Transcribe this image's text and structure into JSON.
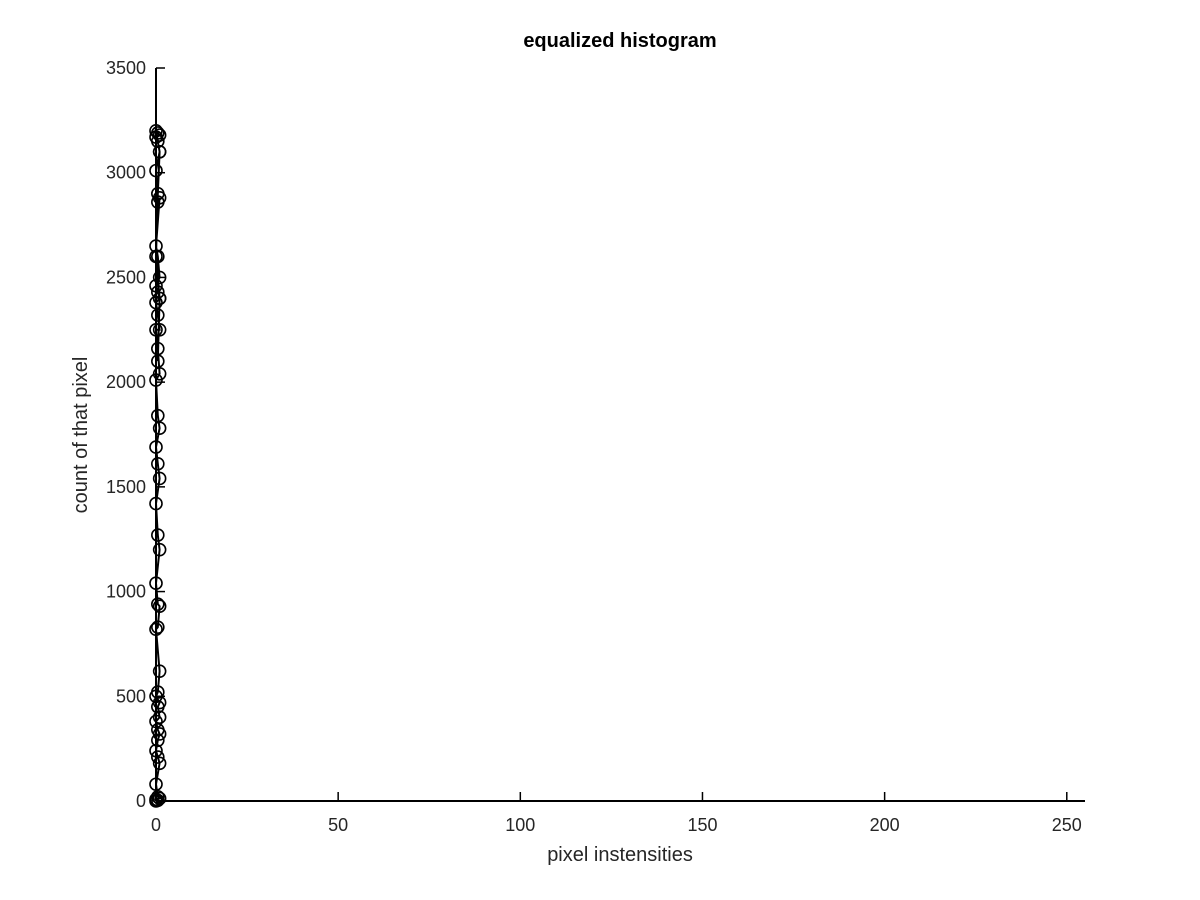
{
  "chart_data": {
    "type": "scatter",
    "title": "equalized histogram",
    "xlabel": "pixel instensities",
    "ylabel": "count of that pixel",
    "xlim": [
      0,
      255
    ],
    "ylim": [
      0,
      3500
    ],
    "xticks": [
      0,
      50,
      100,
      150,
      200,
      250
    ],
    "yticks": [
      0,
      500,
      1000,
      1500,
      2000,
      2500,
      3000,
      3500
    ],
    "xtick_labels": [
      "0",
      "50",
      "100",
      "150",
      "200",
      "250"
    ],
    "ytick_labels": [
      "0",
      "500",
      "1000",
      "1500",
      "2000",
      "2500",
      "3000",
      "3500"
    ],
    "grid": false,
    "marker": "o",
    "line": true,
    "color": "#000000",
    "series": [
      {
        "x": [
          0.0,
          0.5,
          0.0,
          1.0,
          0.5,
          0.0,
          1.0,
          0.5,
          0.0,
          0.5,
          1.0,
          0.5,
          0.0,
          1.0,
          0.5,
          1.0,
          0.0,
          0.5,
          1.0,
          0.0,
          0.5,
          1.0,
          0.5,
          0.0,
          1.0,
          0.5,
          0.0,
          1.0,
          0.5,
          0.0,
          1.0,
          0.5,
          0.0,
          1.0,
          0.5,
          0.0,
          1.0,
          0.5,
          0.0,
          1.0,
          0.5,
          0.0,
          1.0,
          0.5,
          0.0,
          1.0,
          0.5,
          0.0,
          1.0,
          0.5,
          0.0,
          1.0,
          0.5,
          0.0,
          1.0,
          0.5,
          0.0,
          1.0,
          0.5
        ],
        "y": [
          0,
          3,
          8,
          12,
          20,
          80,
          180,
          210,
          240,
          290,
          320,
          340,
          380,
          400,
          450,
          470,
          500,
          520,
          620,
          820,
          830,
          930,
          940,
          1040,
          1200,
          1270,
          1420,
          1540,
          1610,
          1690,
          1780,
          1840,
          2010,
          2040,
          2160,
          2250,
          2250,
          2320,
          2380,
          2400,
          2430,
          2460,
          2500,
          2600,
          2650,
          2880,
          2860,
          3010,
          3100,
          3150,
          3170,
          3180,
          3190,
          3200,
          3100,
          2900,
          2600,
          2400,
          2100
        ]
      }
    ]
  }
}
